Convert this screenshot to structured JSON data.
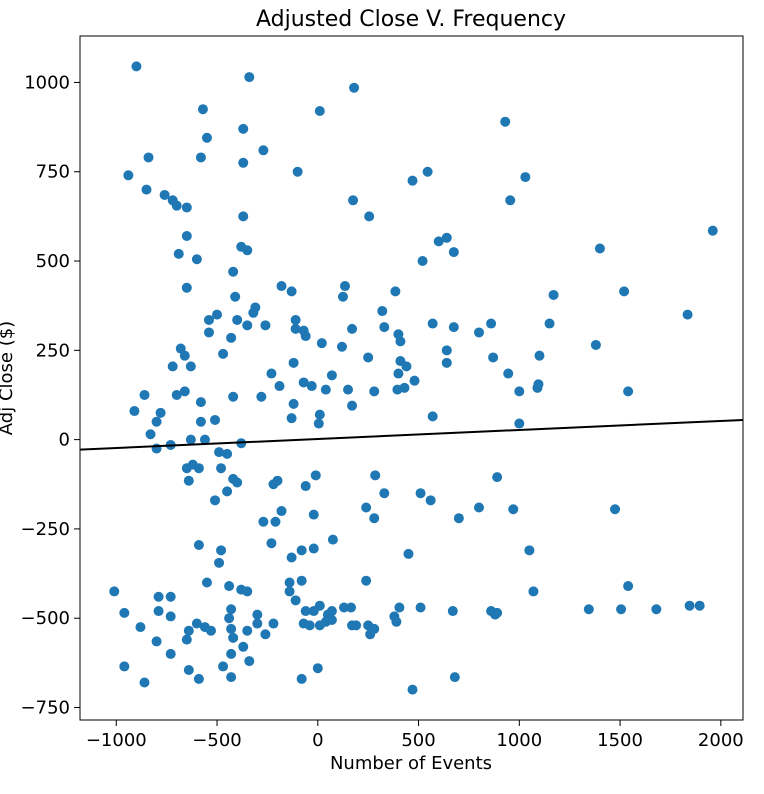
{
  "chart_data": {
    "type": "scatter",
    "title": "Adjusted Close V. Frequency",
    "xlabel": "Number of Events",
    "ylabel": "Adj Close ($)",
    "xlim": [
      -1180,
      2110
    ],
    "ylim": [
      -785,
      1130
    ],
    "xticks": [
      -1000,
      -500,
      0,
      500,
      1000,
      1500,
      2000
    ],
    "yticks": [
      -750,
      -500,
      -250,
      0,
      250,
      500,
      750,
      1000
    ],
    "grid": false,
    "legend": "none",
    "colors": {
      "points": "#1f77b4",
      "trendline": "#000000"
    },
    "trendline": {
      "x": [
        -1180,
        2110
      ],
      "y": [
        -28,
        55
      ]
    },
    "points": [
      [
        -900,
        1045
      ],
      [
        -340,
        1015
      ],
      [
        180,
        985
      ],
      [
        -570,
        925
      ],
      [
        10,
        920
      ],
      [
        930,
        890
      ],
      [
        -370,
        870
      ],
      [
        -550,
        845
      ],
      [
        -270,
        810
      ],
      [
        -840,
        790
      ],
      [
        -580,
        790
      ],
      [
        -370,
        775
      ],
      [
        -940,
        740
      ],
      [
        -100,
        750
      ],
      [
        545,
        750
      ],
      [
        1030,
        735
      ],
      [
        470,
        725
      ],
      [
        -850,
        700
      ],
      [
        -760,
        685
      ],
      [
        -720,
        670
      ],
      [
        -700,
        655
      ],
      [
        -650,
        650
      ],
      [
        175,
        670
      ],
      [
        955,
        670
      ],
      [
        -370,
        625
      ],
      [
        255,
        625
      ],
      [
        -650,
        570
      ],
      [
        640,
        565
      ],
      [
        600,
        555
      ],
      [
        1960,
        585
      ],
      [
        -380,
        540
      ],
      [
        -350,
        530
      ],
      [
        -690,
        520
      ],
      [
        675,
        525
      ],
      [
        1400,
        535
      ],
      [
        -600,
        505
      ],
      [
        520,
        500
      ],
      [
        -420,
        470
      ],
      [
        -650,
        425
      ],
      [
        -180,
        430
      ],
      [
        135,
        430
      ],
      [
        385,
        415
      ],
      [
        1520,
        415
      ],
      [
        1170,
        405
      ],
      [
        -410,
        400
      ],
      [
        125,
        400
      ],
      [
        -310,
        370
      ],
      [
        -500,
        350
      ],
      [
        -320,
        355
      ],
      [
        320,
        360
      ],
      [
        1835,
        350
      ],
      [
        -540,
        335
      ],
      [
        -400,
        335
      ],
      [
        -130,
        415
      ],
      [
        -110,
        335
      ],
      [
        570,
        325
      ],
      [
        860,
        325
      ],
      [
        -350,
        320
      ],
      [
        -260,
        320
      ],
      [
        -110,
        310
      ],
      [
        -70,
        305
      ],
      [
        170,
        310
      ],
      [
        330,
        315
      ],
      [
        675,
        315
      ],
      [
        -540,
        300
      ],
      [
        -430,
        285
      ],
      [
        -60,
        290
      ],
      [
        400,
        295
      ],
      [
        800,
        300
      ],
      [
        1150,
        325
      ],
      [
        20,
        270
      ],
      [
        120,
        260
      ],
      [
        410,
        275
      ],
      [
        1380,
        265
      ],
      [
        640,
        250
      ],
      [
        -680,
        255
      ],
      [
        -660,
        235
      ],
      [
        -470,
        240
      ],
      [
        250,
        230
      ],
      [
        410,
        220
      ],
      [
        640,
        215
      ],
      [
        870,
        230
      ],
      [
        1100,
        235
      ],
      [
        -720,
        205
      ],
      [
        -630,
        205
      ],
      [
        -120,
        215
      ],
      [
        440,
        205
      ],
      [
        945,
        185
      ],
      [
        -230,
        185
      ],
      [
        -70,
        160
      ],
      [
        70,
        180
      ],
      [
        400,
        185
      ],
      [
        480,
        165
      ],
      [
        -190,
        150
      ],
      [
        -30,
        150
      ],
      [
        40,
        140
      ],
      [
        150,
        140
      ],
      [
        280,
        135
      ],
      [
        395,
        140
      ],
      [
        430,
        145
      ],
      [
        1000,
        135
      ],
      [
        1090,
        145
      ],
      [
        1095,
        155
      ],
      [
        1540,
        135
      ],
      [
        -860,
        125
      ],
      [
        -700,
        125
      ],
      [
        -660,
        135
      ],
      [
        -420,
        120
      ],
      [
        -280,
        120
      ],
      [
        -580,
        105
      ],
      [
        -120,
        100
      ],
      [
        170,
        95
      ],
      [
        -910,
        80
      ],
      [
        -780,
        75
      ],
      [
        -580,
        50
      ],
      [
        -510,
        55
      ],
      [
        -130,
        60
      ],
      [
        10,
        70
      ],
      [
        570,
        65
      ],
      [
        -800,
        50
      ],
      [
        5,
        45
      ],
      [
        1000,
        45
      ],
      [
        -830,
        15
      ],
      [
        -630,
        0
      ],
      [
        -560,
        0
      ],
      [
        -380,
        -10
      ],
      [
        -730,
        -15
      ],
      [
        -800,
        -25
      ],
      [
        -490,
        -35
      ],
      [
        -450,
        -40
      ],
      [
        -620,
        -70
      ],
      [
        -590,
        -80
      ],
      [
        -650,
        -80
      ],
      [
        -480,
        -80
      ],
      [
        -640,
        -115
      ],
      [
        -420,
        -110
      ],
      [
        -400,
        -120
      ],
      [
        -220,
        -125
      ],
      [
        -200,
        -115
      ],
      [
        -60,
        -130
      ],
      [
        -10,
        -100
      ],
      [
        285,
        -100
      ],
      [
        890,
        -105
      ],
      [
        -450,
        -145
      ],
      [
        -510,
        -170
      ],
      [
        330,
        -150
      ],
      [
        510,
        -150
      ],
      [
        560,
        -170
      ],
      [
        -180,
        -200
      ],
      [
        240,
        -190
      ],
      [
        800,
        -190
      ],
      [
        970,
        -195
      ],
      [
        1475,
        -195
      ],
      [
        -20,
        -210
      ],
      [
        -270,
        -230
      ],
      [
        -210,
        -230
      ],
      [
        280,
        -220
      ],
      [
        700,
        -220
      ],
      [
        -230,
        -290
      ],
      [
        -590,
        -295
      ],
      [
        -80,
        -310
      ],
      [
        -20,
        -305
      ],
      [
        1050,
        -310
      ],
      [
        -130,
        -330
      ],
      [
        -480,
        -310
      ],
      [
        -490,
        -345
      ],
      [
        450,
        -320
      ],
      [
        75,
        -280
      ],
      [
        -1010,
        -425
      ],
      [
        -790,
        -440
      ],
      [
        -730,
        -440
      ],
      [
        -550,
        -400
      ],
      [
        -440,
        -410
      ],
      [
        -380,
        -420
      ],
      [
        -350,
        -425
      ],
      [
        -140,
        -400
      ],
      [
        -140,
        -425
      ],
      [
        -80,
        -395
      ],
      [
        -110,
        -450
      ],
      [
        240,
        -395
      ],
      [
        1070,
        -425
      ],
      [
        1540,
        -410
      ],
      [
        -960,
        -485
      ],
      [
        -790,
        -480
      ],
      [
        -730,
        -495
      ],
      [
        -430,
        -475
      ],
      [
        -300,
        -490
      ],
      [
        -60,
        -480
      ],
      [
        -20,
        -480
      ],
      [
        10,
        -465
      ],
      [
        50,
        -490
      ],
      [
        70,
        -480
      ],
      [
        130,
        -470
      ],
      [
        165,
        -470
      ],
      [
        380,
        -495
      ],
      [
        405,
        -470
      ],
      [
        510,
        -470
      ],
      [
        670,
        -480
      ],
      [
        860,
        -480
      ],
      [
        880,
        -490
      ],
      [
        890,
        -485
      ],
      [
        1345,
        -475
      ],
      [
        1505,
        -475
      ],
      [
        1680,
        -475
      ],
      [
        1845,
        -465
      ],
      [
        1895,
        -465
      ],
      [
        -880,
        -525
      ],
      [
        -600,
        -515
      ],
      [
        -560,
        -525
      ],
      [
        -530,
        -535
      ],
      [
        -440,
        -500
      ],
      [
        -430,
        -530
      ],
      [
        -350,
        -535
      ],
      [
        -300,
        -515
      ],
      [
        -220,
        -515
      ],
      [
        -70,
        -515
      ],
      [
        -40,
        -520
      ],
      [
        10,
        -520
      ],
      [
        40,
        -510
      ],
      [
        70,
        -505
      ],
      [
        170,
        -520
      ],
      [
        190,
        -520
      ],
      [
        250,
        -520
      ],
      [
        260,
        -545
      ],
      [
        280,
        -530
      ],
      [
        390,
        -510
      ],
      [
        -800,
        -565
      ],
      [
        -650,
        -560
      ],
      [
        -420,
        -555
      ],
      [
        -640,
        -535
      ],
      [
        -260,
        -545
      ],
      [
        -370,
        -580
      ],
      [
        -730,
        -600
      ],
      [
        -430,
        -600
      ],
      [
        -340,
        -620
      ],
      [
        -960,
        -635
      ],
      [
        -640,
        -645
      ],
      [
        -470,
        -635
      ],
      [
        0,
        -640
      ],
      [
        -590,
        -670
      ],
      [
        -430,
        -665
      ],
      [
        -80,
        -670
      ],
      [
        680,
        -665
      ],
      [
        -860,
        -680
      ],
      [
        470,
        -700
      ]
    ]
  }
}
